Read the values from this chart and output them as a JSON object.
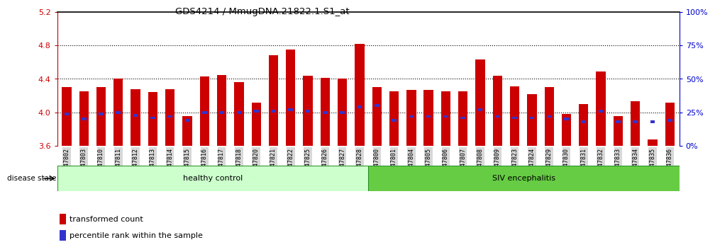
{
  "title": "GDS4214 / MmugDNA.21822.1.S1_at",
  "samples": [
    "GSM347802",
    "GSM347803",
    "GSM347810",
    "GSM347811",
    "GSM347812",
    "GSM347813",
    "GSM347814",
    "GSM347815",
    "GSM347816",
    "GSM347817",
    "GSM347818",
    "GSM347820",
    "GSM347821",
    "GSM347822",
    "GSM347825",
    "GSM347826",
    "GSM347827",
    "GSM347828",
    "GSM347800",
    "GSM347801",
    "GSM347804",
    "GSM347805",
    "GSM347806",
    "GSM347807",
    "GSM347808",
    "GSM347809",
    "GSM347823",
    "GSM347824",
    "GSM347829",
    "GSM347830",
    "GSM347831",
    "GSM347832",
    "GSM347833",
    "GSM347834",
    "GSM347835",
    "GSM347836"
  ],
  "transformed_count": [
    4.3,
    4.25,
    4.3,
    4.4,
    4.28,
    4.24,
    4.28,
    3.96,
    4.43,
    4.45,
    4.36,
    4.12,
    4.68,
    4.75,
    4.44,
    4.41,
    4.4,
    4.82,
    4.3,
    4.25,
    4.27,
    4.27,
    4.25,
    4.25,
    4.63,
    4.44,
    4.31,
    4.22,
    4.3,
    3.98,
    4.1,
    4.49,
    3.96,
    4.13,
    3.68,
    4.12
  ],
  "percentile_rank": [
    24,
    20,
    24,
    25,
    23,
    21,
    22,
    19,
    25,
    25,
    25,
    26,
    26,
    27,
    26,
    25,
    25,
    29,
    30,
    19,
    22,
    22,
    22,
    21,
    27,
    22,
    21,
    21,
    22,
    20,
    18,
    26,
    18,
    18,
    18,
    19
  ],
  "healthy_control_count": 18,
  "ylim_left": [
    3.6,
    5.2
  ],
  "ylim_right": [
    0,
    100
  ],
  "yticks_left": [
    3.6,
    4.0,
    4.4,
    4.8,
    5.2
  ],
  "yticks_right": [
    0,
    25,
    50,
    75,
    100
  ],
  "bar_color": "#cc0000",
  "percentile_color": "#3333cc",
  "healthy_bg": "#ccffcc",
  "siv_bg": "#66cc44",
  "label_color_left": "#cc0000",
  "label_color_right": "#0000cc",
  "disease_state_label": "disease state",
  "healthy_label": "healthy control",
  "siv_label": "SIV encephalitis",
  "legend_transformed": "transformed count",
  "legend_percentile": "percentile rank within the sample",
  "bar_width": 0.55,
  "grid_lines": [
    4.0,
    4.4,
    4.8
  ]
}
